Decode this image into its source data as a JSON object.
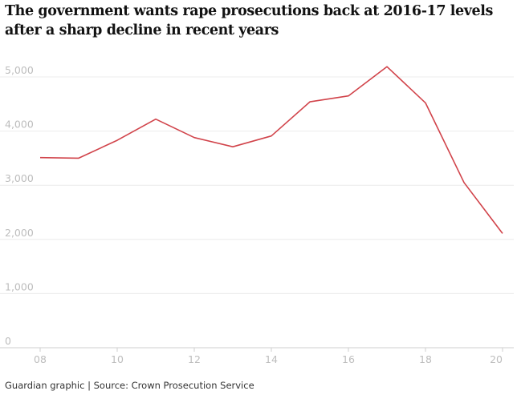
{
  "title": "The government wants rape prosecutions back at 2016-17 levels after a sharp decline in recent years",
  "footer": "Guardian graphic | Source: Crown Prosecution Service",
  "chart_data": {
    "type": "line",
    "title": "The government wants rape prosecutions back at 2016-17 levels after a sharp decline in recent years",
    "xlabel": "",
    "ylabel": "",
    "x": [
      8,
      9,
      10,
      11,
      12,
      13,
      14,
      15,
      16,
      17,
      18,
      19,
      20
    ],
    "series": [
      {
        "values": [
          3510,
          3500,
          3830,
          4220,
          3880,
          3710,
          3910,
          4540,
          4650,
          5190,
          4520,
          3050,
          2110
        ]
      }
    ],
    "xticks": [
      8,
      10,
      12,
      14,
      16,
      18,
      20
    ],
    "xtick_labels": [
      "08",
      "10",
      "12",
      "14",
      "16",
      "18",
      "20"
    ],
    "yticks": [
      0,
      1000,
      2000,
      3000,
      4000,
      5000
    ],
    "ytick_labels": [
      "0",
      "1,000",
      "2,000",
      "3,000",
      "4,000",
      "5,000"
    ],
    "xlim": [
      8,
      20
    ],
    "ylim": [
      0,
      5000
    ],
    "grid": true,
    "line_color": "#d1434a",
    "grid_color": "#ececec"
  }
}
